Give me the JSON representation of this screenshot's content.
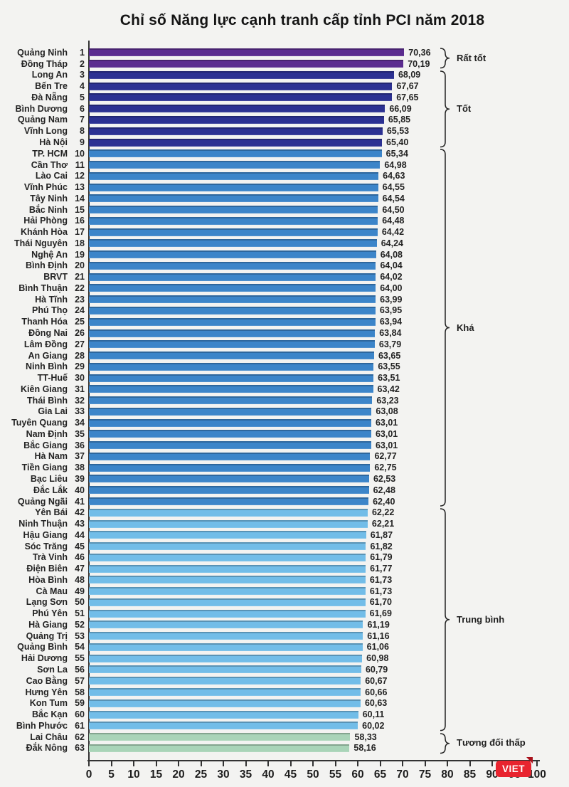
{
  "page": {
    "watermark": "VIET"
  },
  "chart_data": {
    "type": "bar",
    "orientation": "horizontal",
    "title": "Chỉ số Năng lực cạnh tranh cấp tỉnh PCI năm 2018",
    "xlabel": "",
    "ylabel": "",
    "xlim": [
      0,
      100
    ],
    "xticks": [
      0,
      5,
      10,
      15,
      20,
      25,
      30,
      35,
      40,
      45,
      50,
      55,
      60,
      65,
      70,
      75,
      80,
      85,
      90,
      95,
      100
    ],
    "grid": false,
    "legend": "none",
    "groups": [
      {
        "name": "Rất tốt",
        "from_rank": 1,
        "to_rank": 2,
        "color": "#5b2c8f"
      },
      {
        "name": "Tốt",
        "from_rank": 3,
        "to_rank": 9,
        "color": "#2c3192"
      },
      {
        "name": "Khá",
        "from_rank": 10,
        "to_rank": 41,
        "color": "#3c85c9"
      },
      {
        "name": "Trung bình",
        "from_rank": 42,
        "to_rank": 61,
        "color": "#72bde8"
      },
      {
        "name": "Tương đối thấp",
        "from_rank": 62,
        "to_rank": 63,
        "color": "#a9d4b8"
      }
    ],
    "rows": [
      {
        "rank": 1,
        "province": "Quảng Ninh",
        "value": 70.36
      },
      {
        "rank": 2,
        "province": "Đồng Tháp",
        "value": 70.19
      },
      {
        "rank": 3,
        "province": "Long An",
        "value": 68.09
      },
      {
        "rank": 4,
        "province": "Bến Tre",
        "value": 67.67
      },
      {
        "rank": 5,
        "province": "Đà Nẵng",
        "value": 67.65
      },
      {
        "rank": 6,
        "province": "Bình Dương",
        "value": 66.09
      },
      {
        "rank": 7,
        "province": "Quảng Nam",
        "value": 65.85
      },
      {
        "rank": 8,
        "province": "Vĩnh Long",
        "value": 65.53
      },
      {
        "rank": 9,
        "province": "Hà Nội",
        "value": 65.4
      },
      {
        "rank": 10,
        "province": "TP. HCM",
        "value": 65.34
      },
      {
        "rank": 11,
        "province": "Cần Thơ",
        "value": 64.98
      },
      {
        "rank": 12,
        "province": "Lào Cai",
        "value": 64.63
      },
      {
        "rank": 13,
        "province": "Vĩnh Phúc",
        "value": 64.55
      },
      {
        "rank": 14,
        "province": "Tây Ninh",
        "value": 64.54
      },
      {
        "rank": 15,
        "province": "Bắc Ninh",
        "value": 64.5
      },
      {
        "rank": 16,
        "province": "Hải Phòng",
        "value": 64.48
      },
      {
        "rank": 17,
        "province": "Khánh Hòa",
        "value": 64.42
      },
      {
        "rank": 18,
        "province": "Thái Nguyên",
        "value": 64.24
      },
      {
        "rank": 19,
        "province": "Nghệ An",
        "value": 64.08
      },
      {
        "rank": 20,
        "province": "Bình Định",
        "value": 64.04
      },
      {
        "rank": 21,
        "province": "BRVT",
        "value": 64.02
      },
      {
        "rank": 22,
        "province": "Bình Thuận",
        "value": 64.0
      },
      {
        "rank": 23,
        "province": "Hà Tĩnh",
        "value": 63.99
      },
      {
        "rank": 24,
        "province": "Phú Thọ",
        "value": 63.95
      },
      {
        "rank": 25,
        "province": "Thanh Hóa",
        "value": 63.94
      },
      {
        "rank": 26,
        "province": "Đồng Nai",
        "value": 63.84
      },
      {
        "rank": 27,
        "province": "Lâm Đồng",
        "value": 63.79
      },
      {
        "rank": 28,
        "province": "An Giang",
        "value": 63.65
      },
      {
        "rank": 29,
        "province": "Ninh Bình",
        "value": 63.55
      },
      {
        "rank": 30,
        "province": "TT-Huế",
        "value": 63.51
      },
      {
        "rank": 31,
        "province": "Kiên Giang",
        "value": 63.42
      },
      {
        "rank": 32,
        "province": "Thái Bình",
        "value": 63.23
      },
      {
        "rank": 33,
        "province": "Gia Lai",
        "value": 63.08
      },
      {
        "rank": 34,
        "province": "Tuyên Quang",
        "value": 63.01
      },
      {
        "rank": 35,
        "province": "Nam Định",
        "value": 63.01
      },
      {
        "rank": 36,
        "province": "Bắc Giang",
        "value": 63.01
      },
      {
        "rank": 37,
        "province": "Hà Nam",
        "value": 62.77
      },
      {
        "rank": 38,
        "province": "Tiền Giang",
        "value": 62.75
      },
      {
        "rank": 39,
        "province": "Bạc Liêu",
        "value": 62.53
      },
      {
        "rank": 40,
        "province": "Đắc Lắk",
        "value": 62.48
      },
      {
        "rank": 41,
        "province": "Quảng Ngãi",
        "value": 62.4
      },
      {
        "rank": 42,
        "province": "Yên Bái",
        "value": 62.22
      },
      {
        "rank": 43,
        "province": "Ninh Thuận",
        "value": 62.21
      },
      {
        "rank": 44,
        "province": "Hậu Giang",
        "value": 61.87
      },
      {
        "rank": 45,
        "province": "Sóc Trăng",
        "value": 61.82
      },
      {
        "rank": 46,
        "province": "Trà Vinh",
        "value": 61.79
      },
      {
        "rank": 47,
        "province": "Điện Biên",
        "value": 61.77
      },
      {
        "rank": 48,
        "province": "Hòa Bình",
        "value": 61.73
      },
      {
        "rank": 49,
        "province": "Cà Mau",
        "value": 61.73
      },
      {
        "rank": 50,
        "province": "Lạng Sơn",
        "value": 61.7
      },
      {
        "rank": 51,
        "province": "Phú Yên",
        "value": 61.69
      },
      {
        "rank": 52,
        "province": "Hà Giang",
        "value": 61.19
      },
      {
        "rank": 53,
        "province": "Quảng Trị",
        "value": 61.16
      },
      {
        "rank": 54,
        "province": "Quảng Bình",
        "value": 61.06
      },
      {
        "rank": 55,
        "province": "Hải Dương",
        "value": 60.98
      },
      {
        "rank": 56,
        "province": "Sơn La",
        "value": 60.79
      },
      {
        "rank": 57,
        "province": "Cao Bằng",
        "value": 60.67
      },
      {
        "rank": 58,
        "province": "Hưng Yên",
        "value": 60.66
      },
      {
        "rank": 59,
        "province": "Kon Tum",
        "value": 60.63
      },
      {
        "rank": 60,
        "province": "Bắc Kạn",
        "value": 60.11
      },
      {
        "rank": 61,
        "province": "Bình Phước",
        "value": 60.02
      },
      {
        "rank": 62,
        "province": "Lai Châu",
        "value": 58.33
      },
      {
        "rank": 63,
        "province": "Đắk Nông",
        "value": 58.16
      }
    ]
  }
}
